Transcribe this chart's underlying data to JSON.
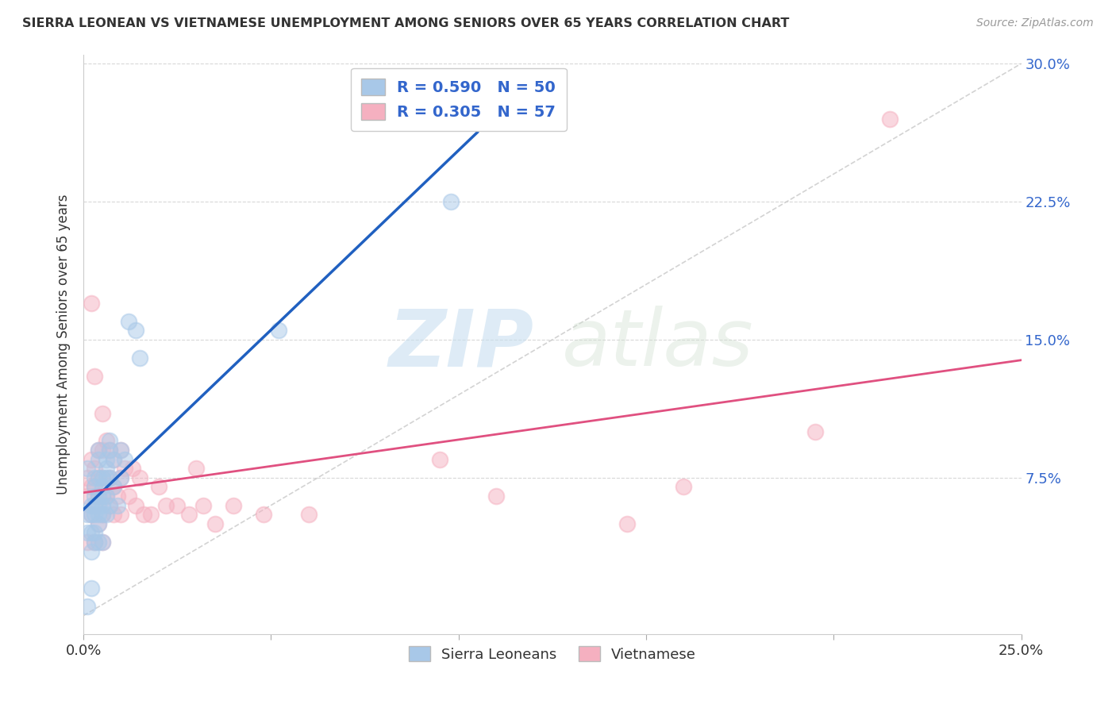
{
  "title": "SIERRA LEONEAN VS VIETNAMESE UNEMPLOYMENT AMONG SENIORS OVER 65 YEARS CORRELATION CHART",
  "source": "Source: ZipAtlas.com",
  "ylabel": "Unemployment Among Seniors over 65 years",
  "xlim": [
    0.0,
    0.25
  ],
  "ylim": [
    -0.01,
    0.305
  ],
  "sl_R": 0.59,
  "sl_N": 50,
  "vn_R": 0.305,
  "vn_N": 57,
  "sl_color": "#a8c8e8",
  "vn_color": "#f5b0c0",
  "sl_line_color": "#2060c0",
  "vn_line_color": "#e05080",
  "diagonal_color": "#c8c8c8",
  "legend_text_color": "#3366cc",
  "sl_x": [
    0.001,
    0.001,
    0.001,
    0.001,
    0.002,
    0.002,
    0.002,
    0.002,
    0.002,
    0.003,
    0.003,
    0.003,
    0.003,
    0.003,
    0.003,
    0.003,
    0.004,
    0.004,
    0.004,
    0.004,
    0.004,
    0.004,
    0.004,
    0.004,
    0.005,
    0.005,
    0.005,
    0.005,
    0.005,
    0.005,
    0.006,
    0.006,
    0.006,
    0.006,
    0.006,
    0.007,
    0.007,
    0.007,
    0.007,
    0.008,
    0.008,
    0.009,
    0.01,
    0.01,
    0.011,
    0.012,
    0.014,
    0.015,
    0.052,
    0.098
  ],
  "sl_y": [
    0.08,
    0.055,
    0.045,
    0.005,
    0.06,
    0.055,
    0.045,
    0.035,
    0.015,
    0.075,
    0.07,
    0.065,
    0.06,
    0.055,
    0.045,
    0.04,
    0.09,
    0.085,
    0.075,
    0.065,
    0.06,
    0.055,
    0.05,
    0.04,
    0.075,
    0.07,
    0.065,
    0.06,
    0.055,
    0.04,
    0.085,
    0.08,
    0.075,
    0.065,
    0.055,
    0.095,
    0.09,
    0.075,
    0.06,
    0.085,
    0.07,
    0.06,
    0.09,
    0.075,
    0.085,
    0.16,
    0.155,
    0.14,
    0.155,
    0.225
  ],
  "vn_x": [
    0.001,
    0.001,
    0.001,
    0.002,
    0.002,
    0.002,
    0.002,
    0.003,
    0.003,
    0.003,
    0.003,
    0.003,
    0.004,
    0.004,
    0.004,
    0.004,
    0.005,
    0.005,
    0.005,
    0.005,
    0.005,
    0.005,
    0.006,
    0.006,
    0.007,
    0.007,
    0.007,
    0.008,
    0.008,
    0.008,
    0.009,
    0.01,
    0.01,
    0.01,
    0.011,
    0.012,
    0.013,
    0.014,
    0.015,
    0.016,
    0.018,
    0.02,
    0.022,
    0.025,
    0.028,
    0.03,
    0.032,
    0.035,
    0.04,
    0.048,
    0.06,
    0.095,
    0.11,
    0.145,
    0.16,
    0.195,
    0.215
  ],
  "vn_y": [
    0.075,
    0.065,
    0.04,
    0.17,
    0.085,
    0.07,
    0.055,
    0.13,
    0.08,
    0.07,
    0.06,
    0.04,
    0.09,
    0.075,
    0.065,
    0.05,
    0.11,
    0.09,
    0.075,
    0.065,
    0.055,
    0.04,
    0.095,
    0.065,
    0.09,
    0.075,
    0.06,
    0.085,
    0.07,
    0.055,
    0.065,
    0.09,
    0.075,
    0.055,
    0.08,
    0.065,
    0.08,
    0.06,
    0.075,
    0.055,
    0.055,
    0.07,
    0.06,
    0.06,
    0.055,
    0.08,
    0.06,
    0.05,
    0.06,
    0.055,
    0.055,
    0.085,
    0.065,
    0.05,
    0.07,
    0.1,
    0.27
  ],
  "watermark_zip": "ZIP",
  "watermark_atlas": "atlas",
  "background_color": "#ffffff",
  "grid_color": "#d8d8d8"
}
